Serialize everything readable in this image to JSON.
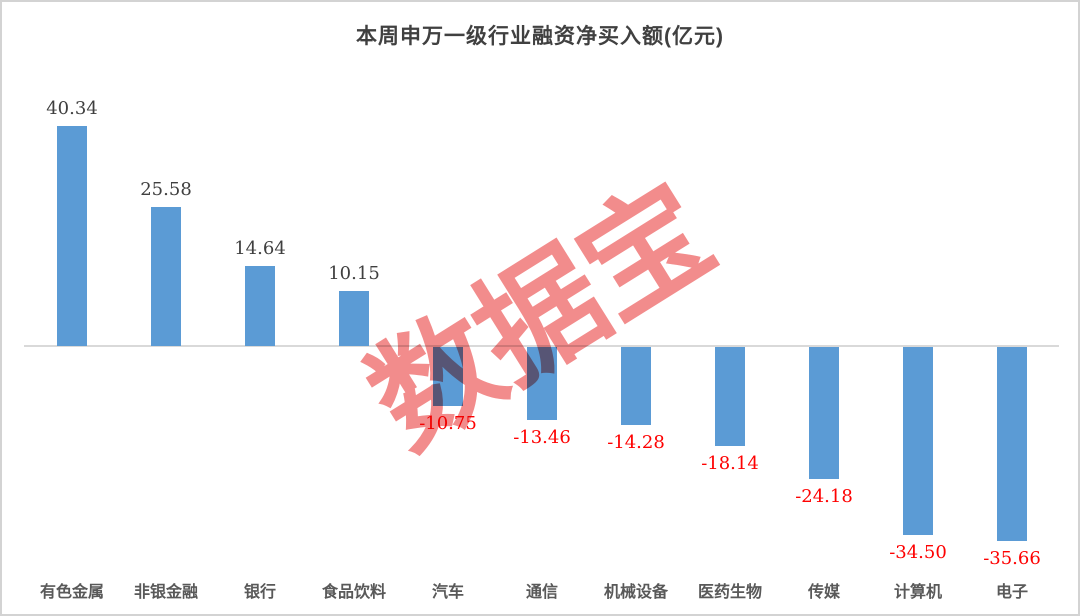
{
  "watermark": {
    "text": "数据宝",
    "color": "#F28C8C"
  },
  "chart_data": {
    "type": "bar",
    "title": "本周申万一级行业融资净买入额(亿元)",
    "categories": [
      "有色金属",
      "非银金融",
      "银行",
      "食品饮料",
      "汽车",
      "通信",
      "机械设备",
      "医药生物",
      "传媒",
      "计算机",
      "电子"
    ],
    "values": [
      40.34,
      25.58,
      14.64,
      10.15,
      -10.75,
      -13.46,
      -14.28,
      -18.14,
      -24.18,
      -34.5,
      -35.66
    ],
    "value_labels": [
      "40.34",
      "25.58",
      "14.64",
      "10.15",
      "-10.75",
      "-13.46",
      "-14.28",
      "-18.14",
      "-24.18",
      "-34.50",
      "-35.66"
    ],
    "xlabel": "",
    "ylabel": "",
    "ylim": [
      -40,
      45
    ],
    "legend": "none",
    "gridlines": false,
    "y_axis_hidden": true,
    "bar_color": "#5B9BD5",
    "zero_line_color": "#D9D9D9",
    "positive_label_color": "#3F3F3F",
    "negative_label_color": "#FE0101",
    "category_label_color": "#595959",
    "title_color": "#404040"
  }
}
